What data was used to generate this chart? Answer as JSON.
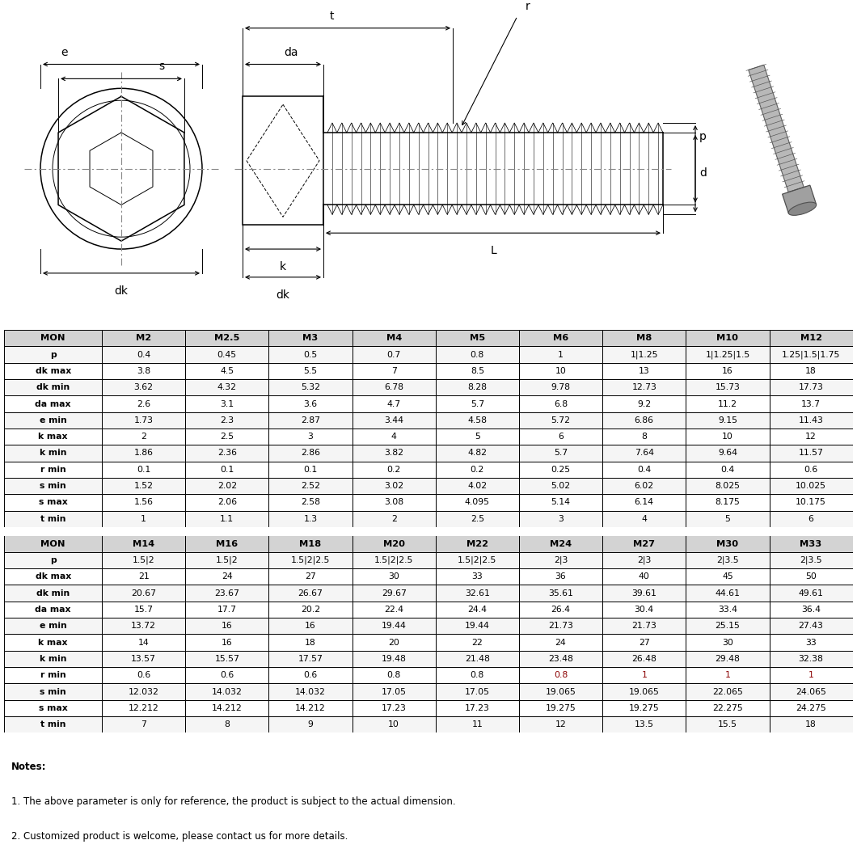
{
  "table1_headers": [
    "MON",
    "M2",
    "M2.5",
    "M3",
    "M4",
    "M5",
    "M6",
    "M8",
    "M10",
    "M12"
  ],
  "table1_rows": [
    [
      "p",
      "0.4",
      "0.45",
      "0.5",
      "0.7",
      "0.8",
      "1",
      "1|1.25",
      "1|1.25|1.5",
      "1.25|1.5|1.75"
    ],
    [
      "dk max",
      "3.8",
      "4.5",
      "5.5",
      "7",
      "8.5",
      "10",
      "13",
      "16",
      "18"
    ],
    [
      "dk min",
      "3.62",
      "4.32",
      "5.32",
      "6.78",
      "8.28",
      "9.78",
      "12.73",
      "15.73",
      "17.73"
    ],
    [
      "da max",
      "2.6",
      "3.1",
      "3.6",
      "4.7",
      "5.7",
      "6.8",
      "9.2",
      "11.2",
      "13.7"
    ],
    [
      "e min",
      "1.73",
      "2.3",
      "2.87",
      "3.44",
      "4.58",
      "5.72",
      "6.86",
      "9.15",
      "11.43"
    ],
    [
      "k max",
      "2",
      "2.5",
      "3",
      "4",
      "5",
      "6",
      "8",
      "10",
      "12"
    ],
    [
      "k min",
      "1.86",
      "2.36",
      "2.86",
      "3.82",
      "4.82",
      "5.7",
      "7.64",
      "9.64",
      "11.57"
    ],
    [
      "r min",
      "0.1",
      "0.1",
      "0.1",
      "0.2",
      "0.2",
      "0.25",
      "0.4",
      "0.4",
      "0.6"
    ],
    [
      "s min",
      "1.52",
      "2.02",
      "2.52",
      "3.02",
      "4.02",
      "5.02",
      "6.02",
      "8.025",
      "10.025"
    ],
    [
      "s max",
      "1.56",
      "2.06",
      "2.58",
      "3.08",
      "4.095",
      "5.14",
      "6.14",
      "8.175",
      "10.175"
    ],
    [
      "t min",
      "1",
      "1.1",
      "1.3",
      "2",
      "2.5",
      "3",
      "4",
      "5",
      "6"
    ]
  ],
  "table2_headers": [
    "MON",
    "M14",
    "M16",
    "M18",
    "M20",
    "M22",
    "M24",
    "M27",
    "M30",
    "M33"
  ],
  "table2_rows": [
    [
      "p",
      "1.5|2",
      "1.5|2",
      "1.5|2|2.5",
      "1.5|2|2.5",
      "1.5|2|2.5",
      "2|3",
      "2|3",
      "2|3.5",
      "2|3.5"
    ],
    [
      "dk max",
      "21",
      "24",
      "27",
      "30",
      "33",
      "36",
      "40",
      "45",
      "50"
    ],
    [
      "dk min",
      "20.67",
      "23.67",
      "26.67",
      "29.67",
      "32.61",
      "35.61",
      "39.61",
      "44.61",
      "49.61"
    ],
    [
      "da max",
      "15.7",
      "17.7",
      "20.2",
      "22.4",
      "24.4",
      "26.4",
      "30.4",
      "33.4",
      "36.4"
    ],
    [
      "e min",
      "13.72",
      "16",
      "16",
      "19.44",
      "19.44",
      "21.73",
      "21.73",
      "25.15",
      "27.43"
    ],
    [
      "k max",
      "14",
      "16",
      "18",
      "20",
      "22",
      "24",
      "27",
      "30",
      "33"
    ],
    [
      "k min",
      "13.57",
      "15.57",
      "17.57",
      "19.48",
      "21.48",
      "23.48",
      "26.48",
      "29.48",
      "32.38"
    ],
    [
      "r min",
      "0.6",
      "0.6",
      "0.6",
      "0.8",
      "0.8",
      "0.8",
      "1",
      "1",
      "1"
    ],
    [
      "s min",
      "12.032",
      "14.032",
      "14.032",
      "17.05",
      "17.05",
      "19.065",
      "19.065",
      "22.065",
      "24.065"
    ],
    [
      "s max",
      "12.212",
      "14.212",
      "14.212",
      "17.23",
      "17.23",
      "19.275",
      "19.275",
      "22.275",
      "24.275"
    ],
    [
      "t min",
      "7",
      "8",
      "9",
      "10",
      "11",
      "12",
      "13.5",
      "15.5",
      "18"
    ]
  ],
  "notes": [
    "Notes:",
    "1. The above parameter is only for reference, the product is subject to the actual dimension.",
    "2. Customized product is welcome, please contact us for more details."
  ],
  "r_min_highlight_color": "#8B0000",
  "header_bg": "#d3d3d3",
  "alt_bg": "#f5f5f5",
  "white_bg": "#ffffff",
  "black": "#000000",
  "gray_center": "#888888"
}
